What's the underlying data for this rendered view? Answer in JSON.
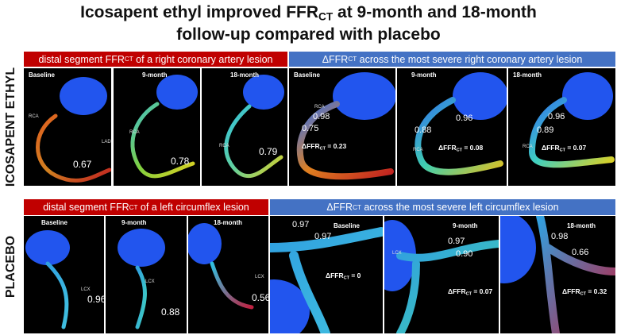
{
  "title": {
    "line1": [
      "Icosapent ethyl improved FFR",
      "CT",
      " at 9-month and 18-month"
    ],
    "line2": "follow-up compared with placebo"
  },
  "rows": [
    {
      "label": "ICOSAPENT ETHYL",
      "left_header": [
        "distal segment FFR",
        "CT",
        " of a right coronary artery lesion"
      ],
      "right_header": [
        "ΔFFR",
        "CT",
        " across the most severe right coronary artery lesion"
      ],
      "left_panels": [
        {
          "label": "Baseline",
          "values": [
            "0.67"
          ],
          "annotations": [
            "RCA",
            "LAD"
          ]
        },
        {
          "label": "9-month",
          "values": [
            "0.78"
          ],
          "annotations": [
            "RCA"
          ]
        },
        {
          "label": "18-month",
          "values": [
            "0.79"
          ],
          "annotations": [
            "RCA"
          ]
        }
      ],
      "right_panels": [
        {
          "label": "Baseline",
          "values": [
            "0.98",
            "0.75"
          ],
          "annotations": [
            "RCA"
          ],
          "delta": [
            "ΔFFR",
            "CT",
            " = 0.23"
          ]
        },
        {
          "label": "9-month",
          "values": [
            "0.96",
            "0.88"
          ],
          "annotations": [
            "RCA"
          ],
          "delta": [
            "ΔFFR",
            "CT",
            " = 0.08"
          ]
        },
        {
          "label": "18-month",
          "values": [
            "0.96",
            "0.89"
          ],
          "annotations": [
            "RCA"
          ],
          "delta": [
            "ΔFFR",
            "CT",
            " = 0.07"
          ]
        }
      ]
    },
    {
      "label": "PLACEBO",
      "left_header": [
        "distal segment FFR",
        "CT",
        " of a left circumflex lesion"
      ],
      "right_header": [
        "ΔFFR",
        "CT",
        " across the most severe left circumflex lesion"
      ],
      "left_panels": [
        {
          "label": "Baseline",
          "values": [
            "0.96"
          ],
          "annotations": [
            "LCX"
          ]
        },
        {
          "label": "9-month",
          "values": [
            "0.88"
          ],
          "annotations": [
            "LCX"
          ]
        },
        {
          "label": "18-month",
          "values": [
            "0.56"
          ],
          "annotations": [
            "LCX"
          ]
        }
      ],
      "right_panels": [
        {
          "label": "Baseline",
          "values": [
            "0.97",
            "0.97"
          ],
          "annotations": [],
          "delta": [
            "ΔFFR",
            "CT",
            " = 0"
          ]
        },
        {
          "label": "9-month",
          "values": [
            "0.97",
            "0.90"
          ],
          "annotations": [
            "LCX"
          ],
          "delta": [
            "ΔFFR",
            "CT",
            " = 0.07"
          ]
        },
        {
          "label": "18-month",
          "values": [
            "0.98",
            "0.66"
          ],
          "annotations": [],
          "delta": [
            "ΔFFR",
            "CT",
            " = 0.32"
          ]
        }
      ]
    }
  ]
}
